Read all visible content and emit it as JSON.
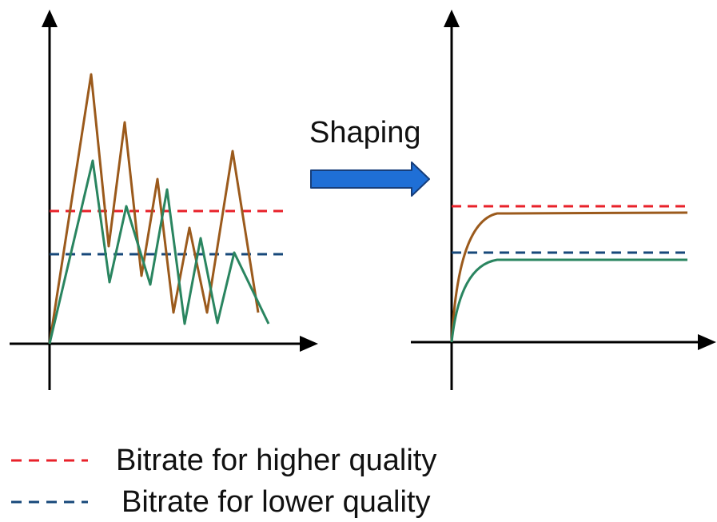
{
  "shaping_label": "Shaping",
  "legend": [
    {
      "label": "Bitrate for higher quality",
      "color": "#e8212a"
    },
    {
      "label": "Bitrate for lower quality",
      "color": "#17487a"
    }
  ],
  "colors": {
    "high_quality_stream": "#9b5a1c",
    "low_quality_stream": "#2a8560",
    "arrow_fill": "#1f6fd6",
    "arrow_stroke": "#173e7a",
    "axis": "#000000"
  }
}
